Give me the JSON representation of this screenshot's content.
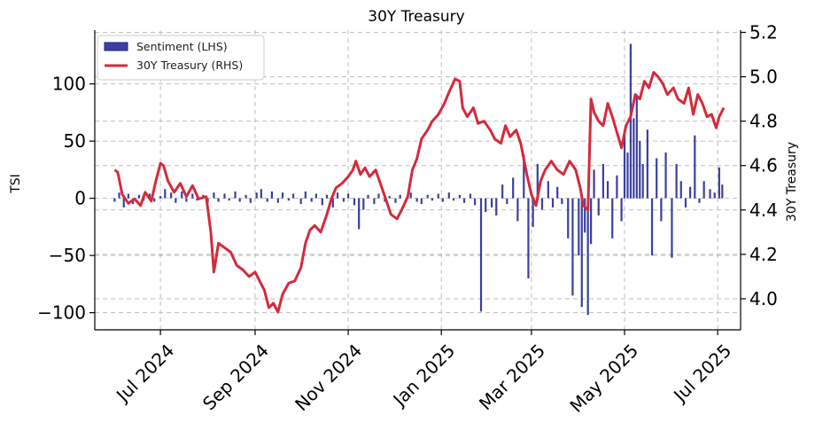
{
  "chart_data": {
    "type": "bar+line",
    "title": "30Y Treasury",
    "xlabel": "",
    "ylabel_left": "TSI",
    "ylabel_right": "30Y Treasury",
    "x_range": [
      "2024-05-19",
      "2025-07-16"
    ],
    "x_ticks": [
      {
        "date": "2024-07-01",
        "label": "Jul 2024"
      },
      {
        "date": "2024-09-01",
        "label": "Sep 2024"
      },
      {
        "date": "2024-11-01",
        "label": "Nov 2024"
      },
      {
        "date": "2025-01-01",
        "label": "Jan 2025"
      },
      {
        "date": "2025-03-01",
        "label": "Mar 2025"
      },
      {
        "date": "2025-05-01",
        "label": "May 2025"
      },
      {
        "date": "2025-07-01",
        "label": "Jul 2025"
      }
    ],
    "ylim_left": [
      -115,
      147
    ],
    "yticks_left": [
      {
        "value": 100,
        "label": "100"
      },
      {
        "value": 50,
        "label": "50"
      },
      {
        "value": 0,
        "label": "0"
      },
      {
        "value": -50,
        "label": "−50"
      },
      {
        "value": -100,
        "label": "−100"
      }
    ],
    "ylim_right": [
      3.86,
      5.21
    ],
    "yticks_right": [
      {
        "value": 5.2,
        "label": "5.2"
      },
      {
        "value": 5.0,
        "label": "5.0"
      },
      {
        "value": 4.8,
        "label": "4.8"
      },
      {
        "value": 4.6,
        "label": "4.6"
      },
      {
        "value": 4.4,
        "label": "4.4"
      },
      {
        "value": 4.2,
        "label": "4.2"
      },
      {
        "value": 4.0,
        "label": "4.0"
      }
    ],
    "grid": true,
    "legend_position": "top-left",
    "series": [
      {
        "name": "Sentiment (LHS)",
        "type": "bar",
        "axis": "left",
        "color": "#1a1f8c",
        "points": [
          [
            "2024-06-01",
            -3
          ],
          [
            "2024-06-04",
            5
          ],
          [
            "2024-06-07",
            -8
          ],
          [
            "2024-06-10",
            4
          ],
          [
            "2024-06-13",
            -5
          ],
          [
            "2024-06-17",
            3
          ],
          [
            "2024-06-20",
            -2
          ],
          [
            "2024-06-24",
            4
          ],
          [
            "2024-06-27",
            -3
          ],
          [
            "2024-07-01",
            2
          ],
          [
            "2024-07-04",
            8
          ],
          [
            "2024-07-08",
            5
          ],
          [
            "2024-07-11",
            -4
          ],
          [
            "2024-07-15",
            6
          ],
          [
            "2024-07-18",
            -3
          ],
          [
            "2024-07-22",
            4
          ],
          [
            "2024-07-25",
            -2
          ],
          [
            "2024-07-29",
            3
          ],
          [
            "2024-08-01",
            -4
          ],
          [
            "2024-08-05",
            5
          ],
          [
            "2024-08-08",
            -3
          ],
          [
            "2024-08-12",
            4
          ],
          [
            "2024-08-15",
            -2
          ],
          [
            "2024-08-19",
            6
          ],
          [
            "2024-08-22",
            -3
          ],
          [
            "2024-08-26",
            3
          ],
          [
            "2024-08-29",
            -4
          ],
          [
            "2024-09-02",
            5
          ],
          [
            "2024-09-05",
            8
          ],
          [
            "2024-09-09",
            -3
          ],
          [
            "2024-09-12",
            6
          ],
          [
            "2024-09-16",
            -4
          ],
          [
            "2024-09-19",
            5
          ],
          [
            "2024-09-23",
            -2
          ],
          [
            "2024-09-26",
            4
          ],
          [
            "2024-10-01",
            -5
          ],
          [
            "2024-10-04",
            6
          ],
          [
            "2024-10-08",
            -3
          ],
          [
            "2024-10-11",
            4
          ],
          [
            "2024-10-15",
            -6
          ],
          [
            "2024-10-18",
            3
          ],
          [
            "2024-10-22",
            -8
          ],
          [
            "2024-10-25",
            5
          ],
          [
            "2024-10-29",
            -3
          ],
          [
            "2024-11-01",
            4
          ],
          [
            "2024-11-05",
            -6
          ],
          [
            "2024-11-08",
            -27
          ],
          [
            "2024-11-11",
            -10
          ],
          [
            "2024-11-14",
            3
          ],
          [
            "2024-11-18",
            -5
          ],
          [
            "2024-11-21",
            4
          ],
          [
            "2024-11-25",
            -3
          ],
          [
            "2024-11-28",
            2
          ],
          [
            "2024-12-02",
            -4
          ],
          [
            "2024-12-05",
            3
          ],
          [
            "2024-12-09",
            -2
          ],
          [
            "2024-12-12",
            5
          ],
          [
            "2024-12-16",
            -3
          ],
          [
            "2024-12-19",
            -5
          ],
          [
            "2024-12-23",
            3
          ],
          [
            "2024-12-26",
            -2
          ],
          [
            "2024-12-30",
            4
          ],
          [
            "2025-01-02",
            -3
          ],
          [
            "2025-01-06",
            5
          ],
          [
            "2025-01-09",
            -2
          ],
          [
            "2025-01-13",
            3
          ],
          [
            "2025-01-16",
            -4
          ],
          [
            "2025-01-20",
            4
          ],
          [
            "2025-01-23",
            -6
          ],
          [
            "2025-01-27",
            -99
          ],
          [
            "2025-01-30",
            -12
          ],
          [
            "2025-02-03",
            -8
          ],
          [
            "2025-02-06",
            -15
          ],
          [
            "2025-02-10",
            12
          ],
          [
            "2025-02-13",
            -5
          ],
          [
            "2025-02-17",
            18
          ],
          [
            "2025-02-20",
            -20
          ],
          [
            "2025-02-24",
            38
          ],
          [
            "2025-02-27",
            -70
          ],
          [
            "2025-03-02",
            -25
          ],
          [
            "2025-03-05",
            30
          ],
          [
            "2025-03-08",
            -10
          ],
          [
            "2025-03-12",
            15
          ],
          [
            "2025-03-15",
            -8
          ],
          [
            "2025-03-18",
            10
          ],
          [
            "2025-03-21",
            -5
          ],
          [
            "2025-03-25",
            -35
          ],
          [
            "2025-03-28",
            -85
          ],
          [
            "2025-04-01",
            -50
          ],
          [
            "2025-04-03",
            -95
          ],
          [
            "2025-04-05",
            -30
          ],
          [
            "2025-04-07",
            -102
          ],
          [
            "2025-04-09",
            -40
          ],
          [
            "2025-04-11",
            25
          ],
          [
            "2025-04-14",
            -15
          ],
          [
            "2025-04-17",
            30
          ],
          [
            "2025-04-20",
            15
          ],
          [
            "2025-04-23",
            -35
          ],
          [
            "2025-04-26",
            20
          ],
          [
            "2025-04-29",
            -20
          ],
          [
            "2025-05-01",
            60
          ],
          [
            "2025-05-03",
            40
          ],
          [
            "2025-05-05",
            135
          ],
          [
            "2025-05-07",
            70
          ],
          [
            "2025-05-09",
            90
          ],
          [
            "2025-05-11",
            50
          ],
          [
            "2025-05-13",
            30
          ],
          [
            "2025-05-16",
            60
          ],
          [
            "2025-05-19",
            -50
          ],
          [
            "2025-05-22",
            35
          ],
          [
            "2025-05-25",
            -20
          ],
          [
            "2025-05-28",
            40
          ],
          [
            "2025-06-01",
            -52
          ],
          [
            "2025-06-04",
            30
          ],
          [
            "2025-06-07",
            15
          ],
          [
            "2025-06-10",
            -8
          ],
          [
            "2025-06-13",
            10
          ],
          [
            "2025-06-16",
            55
          ],
          [
            "2025-06-19",
            -4
          ],
          [
            "2025-06-22",
            15
          ],
          [
            "2025-06-26",
            8
          ],
          [
            "2025-06-29",
            5
          ],
          [
            "2025-07-02",
            27
          ],
          [
            "2025-07-04",
            12
          ]
        ]
      },
      {
        "name": "30Y Treasury (RHS)",
        "type": "line",
        "axis": "right",
        "color": "#d42a3c",
        "points": [
          [
            "2024-06-01",
            4.58
          ],
          [
            "2024-06-03",
            4.57
          ],
          [
            "2024-06-06",
            4.47
          ],
          [
            "2024-06-10",
            4.43
          ],
          [
            "2024-06-14",
            4.45
          ],
          [
            "2024-06-18",
            4.42
          ],
          [
            "2024-06-21",
            4.48
          ],
          [
            "2024-06-25",
            4.44
          ],
          [
            "2024-06-28",
            4.53
          ],
          [
            "2024-07-01",
            4.61
          ],
          [
            "2024-07-03",
            4.6
          ],
          [
            "2024-07-06",
            4.53
          ],
          [
            "2024-07-10",
            4.48
          ],
          [
            "2024-07-14",
            4.52
          ],
          [
            "2024-07-18",
            4.46
          ],
          [
            "2024-07-22",
            4.51
          ],
          [
            "2024-07-26",
            4.45
          ],
          [
            "2024-07-31",
            4.46
          ],
          [
            "2024-08-03",
            4.3
          ],
          [
            "2024-08-05",
            4.12
          ],
          [
            "2024-08-08",
            4.25
          ],
          [
            "2024-08-12",
            4.23
          ],
          [
            "2024-08-16",
            4.21
          ],
          [
            "2024-08-20",
            4.15
          ],
          [
            "2024-08-24",
            4.13
          ],
          [
            "2024-08-28",
            4.1
          ],
          [
            "2024-09-01",
            4.12
          ],
          [
            "2024-09-04",
            4.08
          ],
          [
            "2024-09-07",
            4.04
          ],
          [
            "2024-09-10",
            3.96
          ],
          [
            "2024-09-13",
            3.98
          ],
          [
            "2024-09-16",
            3.94
          ],
          [
            "2024-09-19",
            4.02
          ],
          [
            "2024-09-23",
            4.07
          ],
          [
            "2024-09-27",
            4.08
          ],
          [
            "2024-10-01",
            4.14
          ],
          [
            "2024-10-04",
            4.25
          ],
          [
            "2024-10-07",
            4.31
          ],
          [
            "2024-10-10",
            4.33
          ],
          [
            "2024-10-14",
            4.3
          ],
          [
            "2024-10-18",
            4.38
          ],
          [
            "2024-10-21",
            4.45
          ],
          [
            "2024-10-24",
            4.5
          ],
          [
            "2024-10-28",
            4.52
          ],
          [
            "2024-11-01",
            4.55
          ],
          [
            "2024-11-04",
            4.58
          ],
          [
            "2024-11-06",
            4.62
          ],
          [
            "2024-11-09",
            4.56
          ],
          [
            "2024-11-12",
            4.59
          ],
          [
            "2024-11-15",
            4.55
          ],
          [
            "2024-11-19",
            4.58
          ],
          [
            "2024-11-22",
            4.52
          ],
          [
            "2024-11-26",
            4.44
          ],
          [
            "2024-11-29",
            4.38
          ],
          [
            "2024-12-03",
            4.36
          ],
          [
            "2024-12-06",
            4.4
          ],
          [
            "2024-12-10",
            4.46
          ],
          [
            "2024-12-13",
            4.58
          ],
          [
            "2024-12-16",
            4.63
          ],
          [
            "2024-12-19",
            4.72
          ],
          [
            "2024-12-23",
            4.76
          ],
          [
            "2024-12-26",
            4.8
          ],
          [
            "2024-12-30",
            4.83
          ],
          [
            "2025-01-03",
            4.88
          ],
          [
            "2025-01-06",
            4.93
          ],
          [
            "2025-01-10",
            4.99
          ],
          [
            "2025-01-13",
            4.98
          ],
          [
            "2025-01-15",
            4.86
          ],
          [
            "2025-01-18",
            4.82
          ],
          [
            "2025-01-22",
            4.86
          ],
          [
            "2025-01-25",
            4.79
          ],
          [
            "2025-01-29",
            4.8
          ],
          [
            "2025-02-02",
            4.76
          ],
          [
            "2025-02-05",
            4.72
          ],
          [
            "2025-02-09",
            4.7
          ],
          [
            "2025-02-12",
            4.78
          ],
          [
            "2025-02-15",
            4.73
          ],
          [
            "2025-02-19",
            4.76
          ],
          [
            "2025-02-22",
            4.7
          ],
          [
            "2025-02-26",
            4.56
          ],
          [
            "2025-03-01",
            4.47
          ],
          [
            "2025-03-04",
            4.42
          ],
          [
            "2025-03-07",
            4.53
          ],
          [
            "2025-03-10",
            4.58
          ],
          [
            "2025-03-14",
            4.62
          ],
          [
            "2025-03-18",
            4.58
          ],
          [
            "2025-03-22",
            4.56
          ],
          [
            "2025-03-26",
            4.62
          ],
          [
            "2025-03-30",
            4.58
          ],
          [
            "2025-04-02",
            4.5
          ],
          [
            "2025-04-04",
            4.42
          ],
          [
            "2025-04-07",
            4.4
          ],
          [
            "2025-04-09",
            4.9
          ],
          [
            "2025-04-11",
            4.84
          ],
          [
            "2025-04-14",
            4.8
          ],
          [
            "2025-04-17",
            4.78
          ],
          [
            "2025-04-20",
            4.88
          ],
          [
            "2025-04-23",
            4.82
          ],
          [
            "2025-04-26",
            4.75
          ],
          [
            "2025-04-29",
            4.68
          ],
          [
            "2025-05-02",
            4.78
          ],
          [
            "2025-05-05",
            4.82
          ],
          [
            "2025-05-08",
            4.92
          ],
          [
            "2025-05-11",
            4.9
          ],
          [
            "2025-05-14",
            4.98
          ],
          [
            "2025-05-17",
            4.95
          ],
          [
            "2025-05-20",
            5.02
          ],
          [
            "2025-05-23",
            5.0
          ],
          [
            "2025-05-26",
            4.97
          ],
          [
            "2025-05-29",
            4.92
          ],
          [
            "2025-06-02",
            4.95
          ],
          [
            "2025-06-05",
            4.9
          ],
          [
            "2025-06-09",
            4.88
          ],
          [
            "2025-06-12",
            4.95
          ],
          [
            "2025-06-15",
            4.83
          ],
          [
            "2025-06-18",
            4.92
          ],
          [
            "2025-06-21",
            4.88
          ],
          [
            "2025-06-24",
            4.82
          ],
          [
            "2025-06-27",
            4.83
          ],
          [
            "2025-06-30",
            4.77
          ],
          [
            "2025-07-02",
            4.82
          ],
          [
            "2025-07-05",
            4.86
          ]
        ]
      }
    ]
  }
}
